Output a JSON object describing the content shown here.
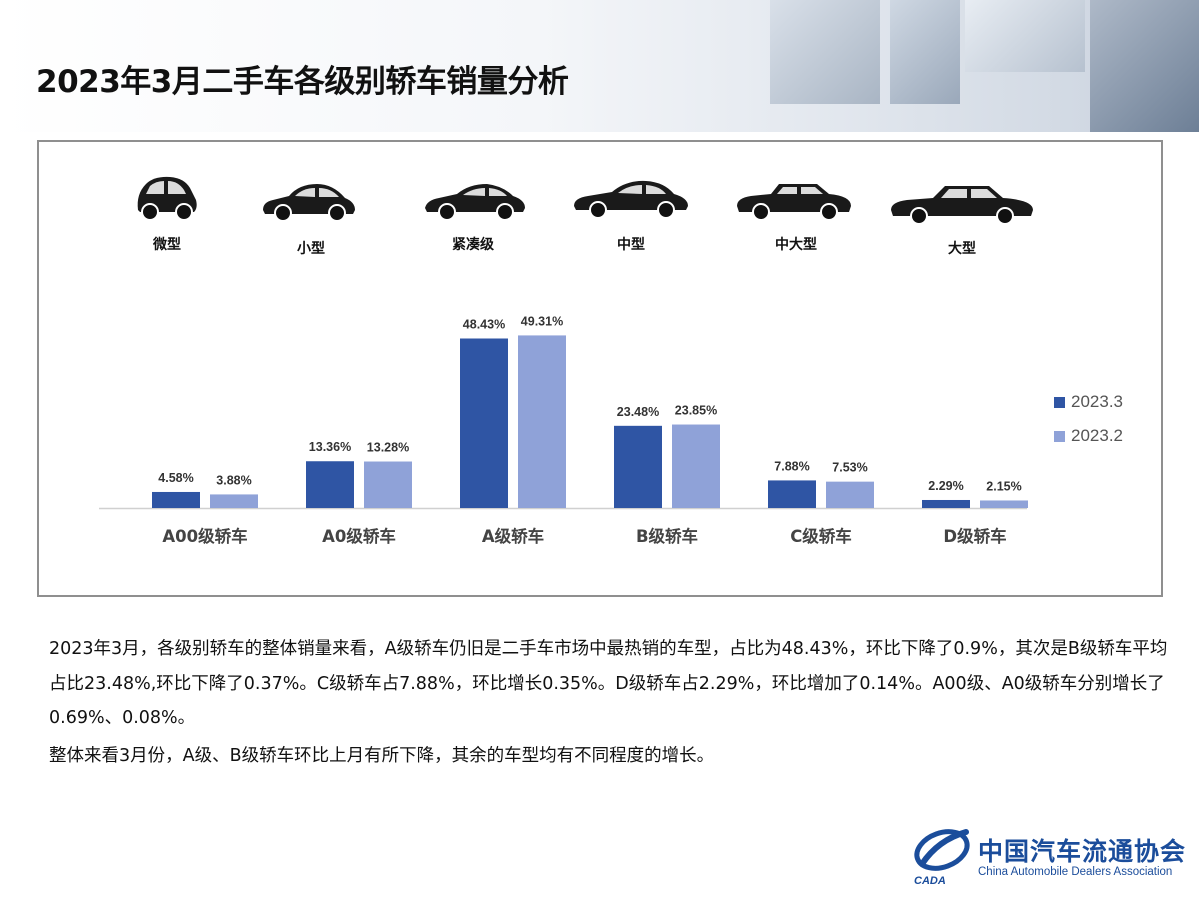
{
  "header": {
    "title": "2023年3月二手车各级别轿车销量分析"
  },
  "car_labels": [
    "微型",
    "小型",
    "紧凑级",
    "中型",
    "中大型",
    "大型"
  ],
  "chart_data": {
    "type": "bar",
    "categories": [
      "A00级轿车",
      "A0级轿车",
      "A级轿车",
      "B级轿车",
      "C级轿车",
      "D级轿车"
    ],
    "series": [
      {
        "name": "2023.3",
        "values": [
          4.58,
          13.36,
          48.43,
          23.48,
          7.88,
          2.29
        ],
        "labels": [
          "4.58%",
          "13.36%",
          "48.43%",
          "23.48%",
          "7.88%",
          "2.29%"
        ],
        "color": "#2f55a4"
      },
      {
        "name": "2023.2",
        "values": [
          3.88,
          13.28,
          49.31,
          23.85,
          7.53,
          2.15
        ],
        "labels": [
          "3.88%",
          "13.28%",
          "49.31%",
          "23.85%",
          "7.53%",
          "2.15%"
        ],
        "color": "#8fa2d8"
      }
    ],
    "legend_position": "right",
    "grid": false
  },
  "description": {
    "paragraph1": "2023年3月，各级别轿车的整体销量来看，A级轿车仍旧是二手车市场中最热销的车型，占比为48.43%，环比下降了0.9%，其次是B级轿车平均占比23.48%,环比下降了0.37%。C级轿车占7.88%，环比增长0.35%。D级轿车占2.29%，环比增加了0.14%。A00级、A0级轿车分别增长了0.69%、0.08%。",
    "paragraph2": "整体来看3月份，A级、B级轿车环比上月有所下降，其余的车型均有不同程度的增长。"
  },
  "logo": {
    "name_cn": "中国汽车流通协会",
    "name_en": "China Automobile Dealers Association",
    "mark_text": "CADA"
  }
}
